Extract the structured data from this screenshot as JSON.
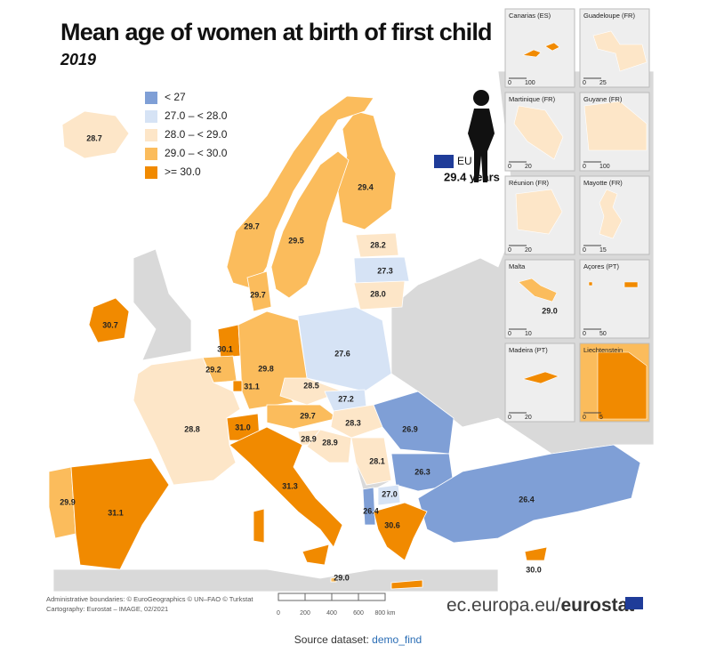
{
  "title": "Mean age of women at birth of first child",
  "subtitle": "2019",
  "legend": {
    "items": [
      {
        "label": "< 27",
        "color": "#7f9fd6"
      },
      {
        "label": "27.0 – < 28.0",
        "color": "#d6e3f5"
      },
      {
        "label": "28.0 – < 29.0",
        "color": "#fde6c8"
      },
      {
        "label": "29.0 – < 30.0",
        "color": "#fbbc5c"
      },
      {
        "label": ">= 30.0",
        "color": "#f18a00"
      }
    ]
  },
  "eu": {
    "label": "EU",
    "value": "29.4 years"
  },
  "regions": [
    {
      "value": "28.7",
      "color": "#fde6c8"
    },
    {
      "value": "29.4",
      "color": "#fbbc5c"
    },
    {
      "value": "29.7",
      "color": "#fbbc5c"
    },
    {
      "value": "29.5",
      "color": "#fbbc5c"
    },
    {
      "value": "28.2",
      "color": "#fde6c8"
    },
    {
      "value": "27.3",
      "color": "#d6e3f5"
    },
    {
      "value": "28.0",
      "color": "#fde6c8"
    },
    {
      "value": "29.7",
      "color": "#fbbc5c"
    },
    {
      "value": "30.7",
      "color": "#f18a00"
    },
    {
      "value": "30.1",
      "color": "#f18a00"
    },
    {
      "value": "27.6",
      "color": "#d6e3f5"
    },
    {
      "value": "29.8",
      "color": "#fbbc5c"
    },
    {
      "value": "29.2",
      "color": "#fbbc5c"
    },
    {
      "value": "31.1",
      "color": "#f18a00"
    },
    {
      "value": "28.5",
      "color": "#fde6c8"
    },
    {
      "value": "27.2",
      "color": "#d6e3f5"
    },
    {
      "value": "29.7",
      "color": "#fbbc5c"
    },
    {
      "value": "28.3",
      "color": "#fde6c8"
    },
    {
      "value": "28.8",
      "color": "#fde6c8"
    },
    {
      "value": "31.0",
      "color": "#f18a00"
    },
    {
      "value": "26.9",
      "color": "#7f9fd6"
    },
    {
      "value": "28.9",
      "color": "#fde6c8"
    },
    {
      "value": "28.9",
      "color": "#fde6c8"
    },
    {
      "value": "28.1",
      "color": "#fde6c8"
    },
    {
      "value": "26.3",
      "color": "#7f9fd6"
    },
    {
      "value": "31.3",
      "color": "#f18a00"
    },
    {
      "value": "27.0",
      "color": "#d6e3f5"
    },
    {
      "value": "29.9",
      "color": "#fbbc5c"
    },
    {
      "value": "31.1",
      "color": "#f18a00"
    },
    {
      "value": "26.4",
      "color": "#7f9fd6"
    },
    {
      "value": "26.4",
      "color": "#7f9fd6"
    },
    {
      "value": "30.6",
      "color": "#f18a00"
    },
    {
      "value": "29.0",
      "color": "#fbbc5c"
    },
    {
      "value": "30.0",
      "color": "#f18a00"
    }
  ],
  "insets": [
    {
      "title": "Canarias (ES)",
      "scale": [
        "0",
        "100"
      ],
      "color": "#f18a00"
    },
    {
      "title": "Guadeloupe (FR)",
      "scale": [
        "0",
        "25"
      ],
      "color": "#fde6c8"
    },
    {
      "title": "Martinique (FR)",
      "scale": [
        "0",
        "20"
      ],
      "color": "#fde6c8"
    },
    {
      "title": "Guyane (FR)",
      "scale": [
        "0",
        "100"
      ],
      "color": "#fde6c8"
    },
    {
      "title": "Réunion (FR)",
      "scale": [
        "0",
        "20"
      ],
      "color": "#fde6c8"
    },
    {
      "title": "Mayotte (FR)",
      "scale": [
        "0",
        "15"
      ],
      "color": "#fde6c8"
    },
    {
      "title": "Malta",
      "scale": [
        "0",
        "10"
      ],
      "color": "#fbbc5c",
      "value": "29.0"
    },
    {
      "title": "Açores (PT)",
      "scale": [
        "0",
        "50"
      ],
      "color": "#f18a00"
    },
    {
      "title": "Madeira (PT)",
      "scale": [
        "0",
        "20"
      ],
      "color": "#f18a00"
    },
    {
      "title": "Liechtenstein",
      "scale": [
        "0",
        "5"
      ],
      "color": "#f18a00"
    }
  ],
  "footer": {
    "credits": [
      "Administrative boundaries: © EuroGeographics © UN–FAO © Turkstat",
      "Cartography: Eurostat – IMAGE, 02/2021"
    ],
    "scale": [
      "0",
      "200",
      "400",
      "600",
      "800 km"
    ],
    "site": "ec.europa.eu/",
    "brand": "eurostat"
  },
  "source": {
    "label": "Source dataset: ",
    "link": "demo_find"
  }
}
